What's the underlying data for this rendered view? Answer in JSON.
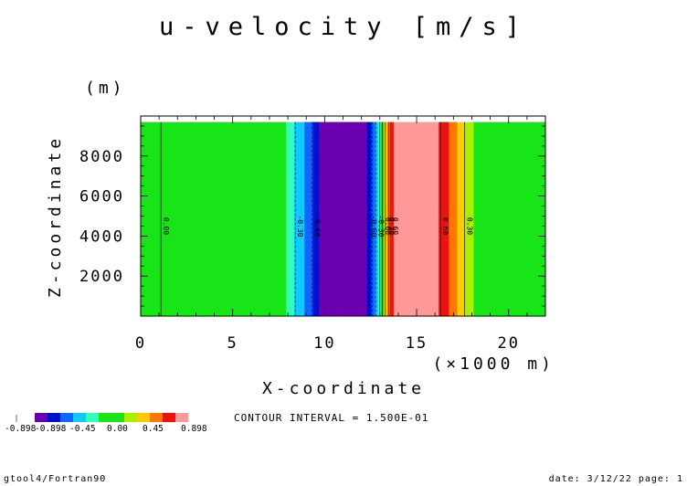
{
  "chart_data": {
    "type": "heatmap",
    "title": "u-velocity [m/s]",
    "xlabel": "X-coordinate",
    "x_unit": "(×1000 m)",
    "ylabel": "Z-coordinate",
    "y_unit": "(m)",
    "xlim": [
      0,
      22
    ],
    "ylim": [
      0,
      10000
    ],
    "x_major_ticks": [
      0,
      5,
      10,
      15,
      20
    ],
    "x_tick_labels": [
      "0",
      "5",
      "10",
      "15",
      "20"
    ],
    "y_major_ticks": [
      2000,
      4000,
      6000,
      8000
    ],
    "y_tick_labels": [
      "2000",
      "4000",
      "6000",
      "8000"
    ],
    "field_x_extent": [
      0,
      22
    ],
    "field_z_extent": [
      0,
      9700
    ],
    "bands": [
      {
        "x0": 0.0,
        "x1": 7.9,
        "color": "#17e517"
      },
      {
        "x0": 7.9,
        "x1": 8.35,
        "color": "#33ffbb"
      },
      {
        "x0": 8.35,
        "x1": 8.9,
        "color": "#11c8ff"
      },
      {
        "x0": 8.9,
        "x1": 9.35,
        "color": "#1166ff"
      },
      {
        "x0": 9.35,
        "x1": 9.7,
        "color": "#0011cc"
      },
      {
        "x0": 9.7,
        "x1": 12.3,
        "color": "#6b00b0"
      },
      {
        "x0": 12.3,
        "x1": 12.55,
        "color": "#0011cc"
      },
      {
        "x0": 12.55,
        "x1": 12.75,
        "color": "#1166ff"
      },
      {
        "x0": 12.75,
        "x1": 12.9,
        "color": "#11c8ff"
      },
      {
        "x0": 12.9,
        "x1": 13.05,
        "color": "#33ffbb"
      },
      {
        "x0": 13.05,
        "x1": 13.2,
        "color": "#17e517"
      },
      {
        "x0": 13.2,
        "x1": 13.3,
        "color": "#aaee00"
      },
      {
        "x0": 13.3,
        "x1": 13.4,
        "color": "#ffcc00"
      },
      {
        "x0": 13.4,
        "x1": 13.55,
        "color": "#ff7700"
      },
      {
        "x0": 13.55,
        "x1": 13.75,
        "color": "#ee1111"
      },
      {
        "x0": 13.75,
        "x1": 16.2,
        "color": "#ff9999"
      },
      {
        "x0": 16.2,
        "x1": 16.75,
        "color": "#ee1111"
      },
      {
        "x0": 16.75,
        "x1": 17.2,
        "color": "#ff7700"
      },
      {
        "x0": 17.2,
        "x1": 17.6,
        "color": "#ffcc00"
      },
      {
        "x0": 17.6,
        "x1": 18.1,
        "color": "#aaee00"
      },
      {
        "x0": 18.1,
        "x1": 22.0,
        "color": "#17e517"
      }
    ],
    "contour_lines": [
      {
        "x": 1.1,
        "style": "solid"
      },
      {
        "x": 8.4,
        "style": "dashed"
      },
      {
        "x": 9.3,
        "style": "dashed"
      },
      {
        "x": 12.4,
        "style": "dashed"
      },
      {
        "x": 12.6,
        "style": "dashed"
      },
      {
        "x": 12.8,
        "style": "dashed"
      },
      {
        "x": 13.0,
        "style": "solid"
      },
      {
        "x": 13.15,
        "style": "solid"
      },
      {
        "x": 13.3,
        "style": "solid"
      },
      {
        "x": 13.5,
        "style": "solid"
      },
      {
        "x": 16.3,
        "style": "solid"
      },
      {
        "x": 17.6,
        "style": "solid"
      }
    ],
    "contour_labels": [
      {
        "x": 1.1,
        "z": 4500,
        "text": "0.00"
      },
      {
        "x": 8.4,
        "z": 4500,
        "text": "-0.30"
      },
      {
        "x": 9.3,
        "z": 4500,
        "text": "-0.60"
      },
      {
        "x": 12.4,
        "z": 4500,
        "text": "-0.60"
      },
      {
        "x": 12.8,
        "z": 4500,
        "text": "-0.30"
      },
      {
        "x": 13.15,
        "z": 4500,
        "text": "0.00"
      },
      {
        "x": 13.35,
        "z": 4500,
        "text": "0.30"
      },
      {
        "x": 13.55,
        "z": 4500,
        "text": "0.60"
      },
      {
        "x": 16.3,
        "z": 4500,
        "text": "0.60"
      },
      {
        "x": 17.6,
        "z": 4500,
        "text": "0.30"
      }
    ]
  },
  "legend": {
    "colors": [
      "#6b00b0",
      "#0011cc",
      "#1166ff",
      "#11c8ff",
      "#33ffbb",
      "#17e517",
      "#17e517",
      "#aaee00",
      "#ffcc00",
      "#ff7700",
      "#ee1111",
      "#ff9999"
    ],
    "labels": [
      "-0.898",
      "-0.45",
      "0.00",
      "0.45",
      "0.898"
    ],
    "left_marker": "-0.898",
    "contour_interval": "CONTOUR INTERVAL = 1.500E-01"
  },
  "footer": {
    "left": "gtool4/Fortran90",
    "right": "date: 3/12/22 page: 1"
  }
}
